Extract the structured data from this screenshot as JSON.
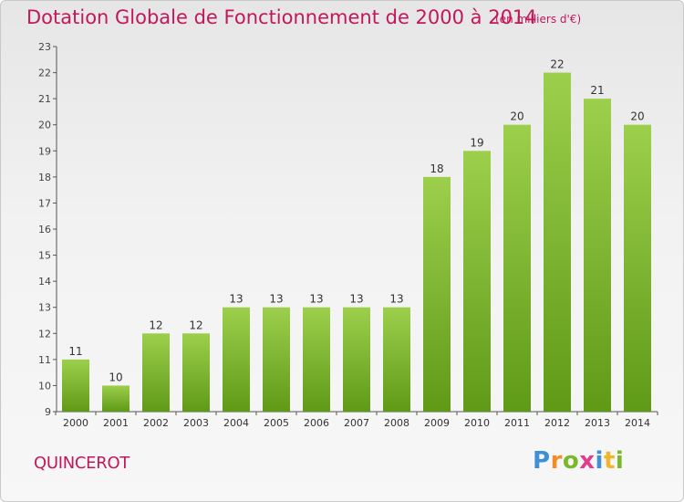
{
  "header": {
    "title": "Dotation Globale de Fonctionnement de 2000 à 2014",
    "subtitle": "(en milliers d'€)"
  },
  "commune_name": "QUINCEROT",
  "logo": {
    "text": "Proxiti"
  },
  "colors": {
    "title": "#c2185b",
    "bar_top": "#9ccf4c",
    "bar_bottom": "#5f9a17",
    "axis": "#555555"
  },
  "chart_data": {
    "type": "bar",
    "title": "Dotation Globale de Fonctionnement de 2000 à 2014",
    "xlabel": "",
    "ylabel": "",
    "categories": [
      "2000",
      "2001",
      "2002",
      "2003",
      "2004",
      "2005",
      "2006",
      "2007",
      "2008",
      "2009",
      "2010",
      "2011",
      "2012",
      "2013",
      "2014"
    ],
    "values": [
      11,
      10,
      12,
      12,
      13,
      13,
      13,
      13,
      13,
      18,
      19,
      20,
      22,
      21,
      20
    ],
    "ylim": [
      9,
      23
    ],
    "yticks": [
      9,
      10,
      11,
      12,
      13,
      14,
      15,
      16,
      17,
      18,
      19,
      20,
      21,
      22,
      23
    ],
    "grid": false,
    "legend": "none"
  }
}
